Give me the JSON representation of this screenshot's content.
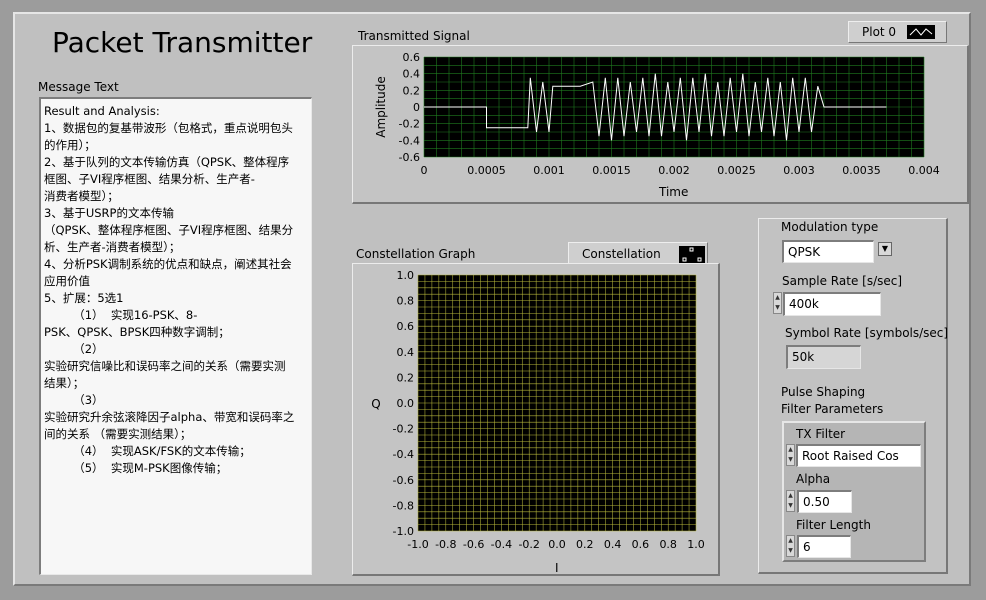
{
  "app": {
    "title": "Packet Transmitter"
  },
  "message": {
    "label": "Message Text",
    "lines": [
      "Result and Analysis:",
      "1、数据包的复基带波形（包格式，重点说明包头",
      "的作用）；",
      "2、基于队列的文本传输仿真（QPSK、整体程序",
      "框图、子VI程序框图、结果分析、生产者-",
      "消费者模型）；",
      "3、基于USRP的文本传输",
      "（QPSK、整体程序框图、子VI程序框图、结果分",
      "析、生产者-消费者模型）；",
      "4、分析PSK调制系统的优点和缺点，阐述其社会",
      "应用价值",
      "5、扩展：5选1",
      "        （1）  实现16-PSK、8-",
      "PSK、QPSK、BPSK四种数字调制；",
      "        （2）",
      "实验研究信噪比和误码率之间的关系（需要实测",
      "结果）；",
      "        （3）",
      "实验研究升余弦滚降因子alpha、带宽和误码率之",
      "间的关系 （需要实测结果）；",
      "        （4）  实现ASK/FSK的文本传输；",
      "        （5）  实现M-PSK图像传输；"
    ]
  },
  "transmitted": {
    "label": "Transmitted Signal",
    "legend": "Plot 0",
    "xlabel": "Time",
    "ylabel": "Amplitude"
  },
  "constellation": {
    "label": "Constellation Graph",
    "legend": "Constellation",
    "xlabel": "I",
    "ylabel": "Q"
  },
  "controls": {
    "modulation_label": "Modulation type",
    "modulation_value": "QPSK",
    "sample_rate_label": "Sample Rate [s/sec]",
    "sample_rate_value": "400k",
    "symbol_rate_label": "Symbol Rate [symbols/sec]",
    "symbol_rate_value": "50k",
    "pulse_label_1": "Pulse Shaping",
    "pulse_label_2": "Filter Parameters",
    "tx_filter_label": "TX Filter",
    "tx_filter_value": "Root Raised Cos",
    "alpha_label": "Alpha",
    "alpha_value": "0.50",
    "filter_length_label": "Filter Length",
    "filter_length_value": "6"
  },
  "colors": {
    "plot_bg": "#000000",
    "grid_signal": "#1f7a1f",
    "grid_constellation": "#b5b53a",
    "trace": "#ffffff",
    "panel": "#c0c0c0"
  },
  "chart_data": [
    {
      "type": "line",
      "title": "Transmitted Signal",
      "xlabel": "Time",
      "ylabel": "Amplitude",
      "xlim": [
        0,
        0.004
      ],
      "ylim": [
        -0.6,
        0.6
      ],
      "x_ticks": [
        "0",
        "0.0005",
        "0.001",
        "0.0015",
        "0.002",
        "0.0025",
        "0.003",
        "0.0035",
        "0.004"
      ],
      "y_ticks": [
        "0.6",
        "0.4",
        "0.2",
        "0",
        "-0.2",
        "-0.4",
        "-0.6"
      ],
      "grid": true,
      "series": [
        {
          "name": "Plot 0",
          "x": [
            0,
            0.0005,
            0.0005,
            0.00083,
            0.00085,
            0.0009,
            0.00095,
            0.001,
            0.00103,
            0.00105,
            0.0011,
            0.00125,
            0.00135,
            0.0014,
            0.00145,
            0.0015,
            0.00155,
            0.0016,
            0.00165,
            0.0017,
            0.00175,
            0.0018,
            0.00185,
            0.0019,
            0.00195,
            0.002,
            0.00205,
            0.0021,
            0.00215,
            0.0022,
            0.00225,
            0.0023,
            0.00235,
            0.0024,
            0.00245,
            0.0025,
            0.00255,
            0.0026,
            0.00265,
            0.0027,
            0.00275,
            0.0028,
            0.00285,
            0.0029,
            0.00295,
            0.003,
            0.00305,
            0.0031,
            0.00315,
            0.0032,
            0.0032,
            0.0037
          ],
          "y": [
            0,
            0,
            -0.25,
            -0.25,
            0.35,
            -0.3,
            0.3,
            -0.3,
            0.25,
            0.25,
            0.25,
            0.25,
            0.3,
            -0.35,
            0.35,
            -0.4,
            0.35,
            -0.35,
            0.3,
            -0.3,
            0.35,
            -0.35,
            0.4,
            -0.35,
            0.3,
            -0.3,
            0.35,
            -0.4,
            0.35,
            -0.3,
            0.4,
            -0.35,
            0.3,
            -0.35,
            0.35,
            -0.3,
            0.4,
            -0.35,
            0.3,
            -0.3,
            0.35,
            -0.35,
            0.3,
            -0.4,
            0.35,
            -0.3,
            0.35,
            -0.3,
            0.25,
            0,
            0,
            0
          ]
        }
      ]
    },
    {
      "type": "scatter",
      "title": "Constellation Graph",
      "xlabel": "I",
      "ylabel": "Q",
      "xlim": [
        -1.0,
        1.0
      ],
      "ylim": [
        -1.0,
        1.0
      ],
      "x_ticks": [
        "-1.0",
        "-0.8",
        "-0.6",
        "-0.4",
        "-0.2",
        "0.0",
        "0.2",
        "0.4",
        "0.6",
        "0.8",
        "1.0"
      ],
      "y_ticks": [
        "1.0",
        "0.8",
        "0.6",
        "0.4",
        "0.2",
        "0.0",
        "-0.2",
        "-0.4",
        "-0.6",
        "-0.8",
        "-1.0"
      ],
      "grid": true,
      "series": [
        {
          "name": "Constellation",
          "x": [],
          "y": []
        }
      ]
    }
  ]
}
